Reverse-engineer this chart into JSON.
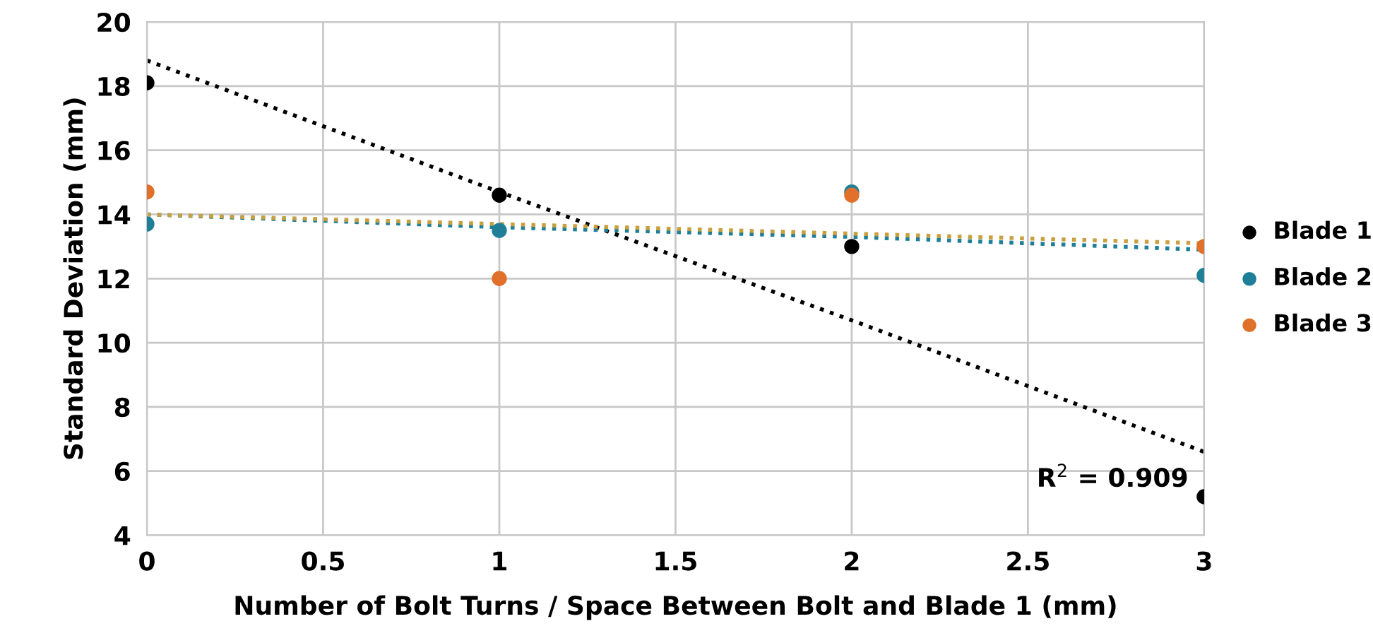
{
  "chart_data": {
    "type": "scatter",
    "xlabel": "Number of Bolt Turns / Space Between Bolt and Blade 1 (mm)",
    "ylabel": "Standard Deviation (mm)",
    "x": [
      0,
      1,
      2,
      3
    ],
    "xlim": [
      0,
      3
    ],
    "xticks": [
      0,
      0.5,
      1,
      1.5,
      2,
      2.5,
      3
    ],
    "ylim": [
      4,
      20
    ],
    "yticks": [
      4,
      6,
      8,
      10,
      12,
      14,
      16,
      18,
      20
    ],
    "grid": true,
    "legend": "right",
    "marker": "circle",
    "series": [
      {
        "name": "Blade 1",
        "color": "#000000",
        "values": [
          18.1,
          14.6,
          13.0,
          5.2
        ]
      },
      {
        "name": "Blade 2",
        "color": "#1f7f99",
        "values": [
          13.7,
          13.5,
          14.7,
          12.1
        ]
      },
      {
        "name": "Blade 3",
        "color": "#e0702a",
        "values": [
          14.7,
          12.0,
          14.6,
          13.0
        ]
      },
      {
        "type": "line",
        "line_style": "dotted",
        "marker": "none",
        "color": "#000000",
        "values": [
          18.8,
          14.7,
          10.7,
          6.6
        ]
      },
      {
        "type": "line",
        "line_style": "dotted",
        "marker": "none",
        "color": "#1f7f99",
        "values": [
          14.0,
          13.6,
          13.3,
          12.9
        ]
      },
      {
        "type": "line",
        "line_style": "dotted",
        "marker": "none",
        "color": "#c9a040",
        "values": [
          14.0,
          13.7,
          13.4,
          13.1
        ]
      }
    ],
    "annotations": [
      {
        "text": "R$^{2}$ = 0.909",
        "x": 3,
        "y": 6.6
      }
    ]
  }
}
